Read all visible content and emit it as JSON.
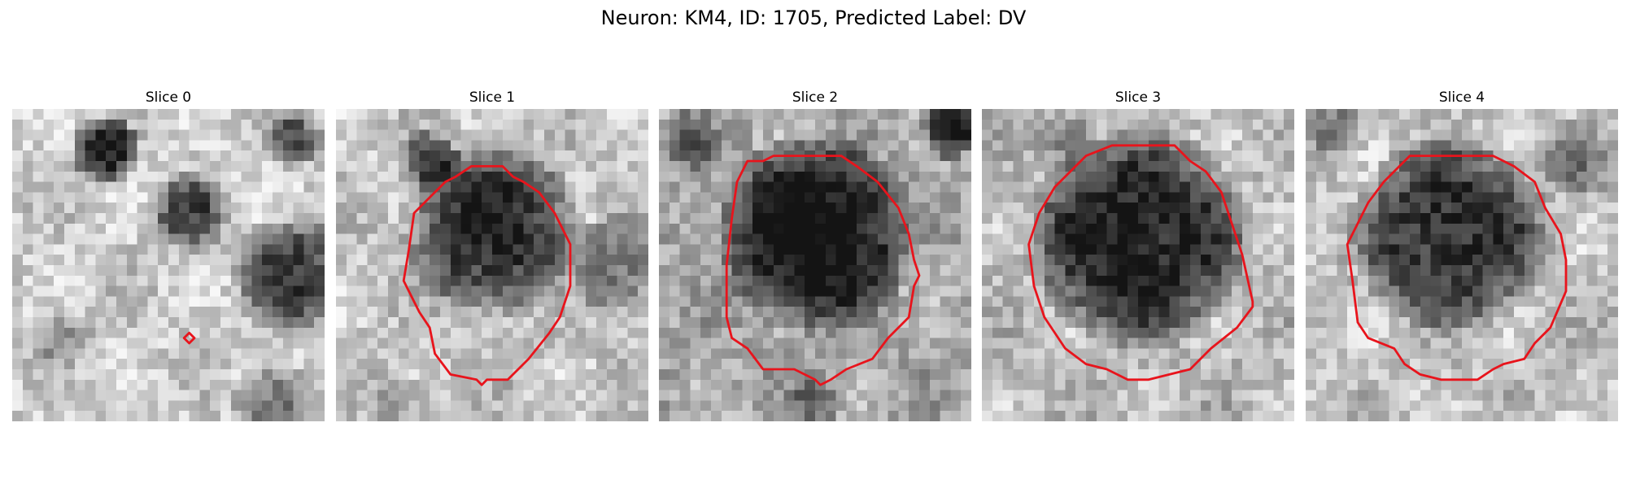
{
  "figure": {
    "title": "Neuron: KM4, ID: 1705, Predicted Label: DV"
  },
  "panels": [
    {
      "title": "Slice 0",
      "image": "grayscale-microscopy-slice",
      "overlay": "red-contour-small"
    },
    {
      "title": "Slice 1",
      "image": "grayscale-microscopy-slice",
      "overlay": "red-contour"
    },
    {
      "title": "Slice 2",
      "image": "grayscale-microscopy-slice",
      "overlay": "red-contour"
    },
    {
      "title": "Slice 3",
      "image": "grayscale-microscopy-slice",
      "overlay": "red-contour"
    },
    {
      "title": "Slice 4",
      "image": "grayscale-microscopy-slice",
      "overlay": "red-contour"
    }
  ],
  "colors": {
    "contour": "#e8141c",
    "background": "#ffffff"
  }
}
